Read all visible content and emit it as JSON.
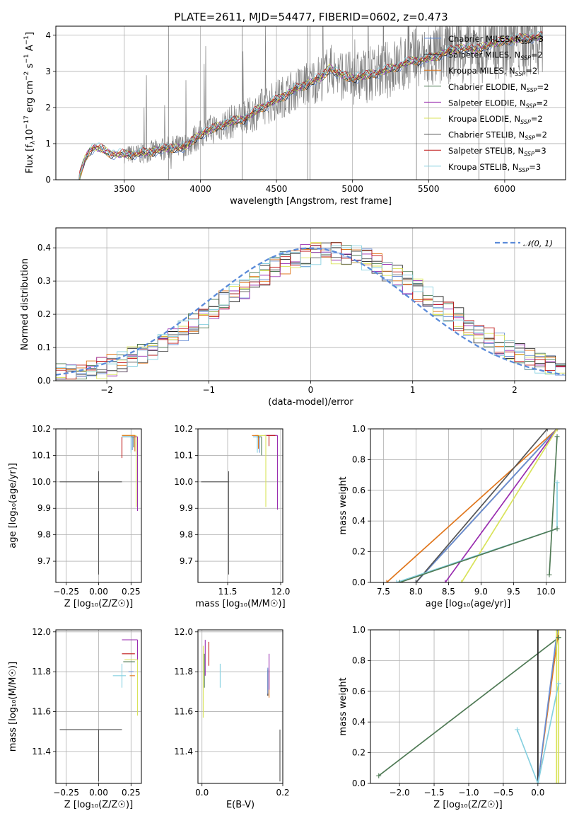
{
  "title": "PLATE=2611, MJD=54477, FIBERID=0602, z=0.473",
  "colors": {
    "chabrier_miles": "#6a8fd6",
    "salpeter_miles": "#222222",
    "kroupa_miles": "#e0761c",
    "chabrier_elodie": "#4f7a55",
    "salpeter_elodie": "#9a2eb0",
    "kroupa_elodie": "#d9e35a",
    "chabrier_stelib": "#555555",
    "salpeter_stelib": "#c01818",
    "kroupa_stelib": "#86d0e0",
    "data": "#7f7f7f",
    "normal": "#5b8bd9"
  },
  "chart_data": [
    {
      "id": "spectrum",
      "type": "line",
      "xlabel": "wavelength [Angstrom, rest frame]",
      "ylabel_parts": [
        "Flux [f",
        "λ",
        "10",
        "−17",
        " erg cm",
        "−2",
        " s",
        "−1",
        " A",
        "−1",
        "]"
      ],
      "xlim": [
        3050,
        6400
      ],
      "ylim": [
        0,
        4.25
      ],
      "xticks": [
        3500,
        4000,
        4500,
        5000,
        5500,
        6000
      ],
      "yticks": [
        0,
        1,
        2,
        3,
        4
      ],
      "continuum": {
        "x": [
          3200,
          3240,
          3270,
          3300,
          3350,
          3400,
          3450,
          3500,
          3600,
          3700,
          3800,
          3900,
          3950,
          4000,
          4100,
          4200,
          4300,
          4400,
          4500,
          4600,
          4700,
          4800,
          4850,
          4900,
          5000,
          5100,
          5200,
          5300,
          5400,
          5500,
          5600,
          5700,
          5800,
          5900,
          6000,
          6100,
          6200
        ],
        "y": [
          0,
          0.55,
          0.8,
          0.9,
          0.85,
          0.75,
          0.7,
          0.7,
          0.72,
          0.8,
          0.88,
          0.9,
          1.1,
          1.25,
          1.45,
          1.6,
          1.7,
          2.0,
          2.2,
          2.45,
          2.65,
          2.85,
          3.1,
          2.95,
          2.8,
          2.9,
          3.0,
          3.15,
          3.3,
          3.35,
          3.5,
          3.65,
          3.6,
          3.75,
          3.85,
          3.9,
          3.95
        ]
      },
      "legend": [
        {
          "name": "Chabrier MILES, N",
          "sub": "SSP",
          "n": "=3"
        },
        {
          "name": "Salpeter MILES, N",
          "sub": "SSP",
          "n": "=2"
        },
        {
          "name": "Kroupa MILES, N",
          "sub": "SSP",
          "n": "=2"
        },
        {
          "name": "Chabrier ELODIE, N",
          "sub": "SSP",
          "n": "=2"
        },
        {
          "name": "Salpeter ELODIE, N",
          "sub": "SSP",
          "n": "=2"
        },
        {
          "name": "Kroupa ELODIE, N",
          "sub": "SSP",
          "n": "=2"
        },
        {
          "name": "Chabrier STELIB, N",
          "sub": "SSP",
          "n": "=2"
        },
        {
          "name": "Salpeter STELIB, N",
          "sub": "SSP",
          "n": "=3"
        },
        {
          "name": "Kroupa STELIB, N",
          "sub": "SSP",
          "n": "=3"
        }
      ]
    },
    {
      "id": "residuals",
      "type": "bar",
      "xlabel": "(data-model)/error",
      "ylabel": "Normed distribution",
      "xlim": [
        -2.5,
        2.5
      ],
      "ylim": [
        0,
        0.46
      ],
      "xticks": [
        -2,
        -1,
        0,
        1,
        2
      ],
      "yticks": [
        0.0,
        0.1,
        0.2,
        0.3,
        0.4
      ],
      "bin_width": 0.1,
      "legend_label": "𝒩(0, 1)"
    },
    {
      "id": "age_vs_Z",
      "type": "scatter",
      "xlabel": "Z [log₁₀(Z/Z☉)]",
      "ylabel": "age  [log₁₀(age/yr)]",
      "xlim": [
        -0.33,
        0.33
      ],
      "ylim": [
        9.62,
        10.2
      ],
      "xticks": [
        -0.25,
        0.0,
        0.25
      ],
      "yticks": [
        9.7,
        9.8,
        9.9,
        10.0,
        10.1,
        10.2
      ],
      "points": [
        {
          "c": "chabrier_stelib",
          "x": 0.0,
          "xerr": [
            0.3,
            0.18
          ],
          "y": 10.0,
          "yerr": [
            0.35,
            0.04
          ]
        },
        {
          "c": "salpeter_stelib",
          "x": 0.18,
          "xerr": [
            0.0,
            0.12
          ],
          "y": 10.17,
          "yerr": [
            0.08,
            0.0
          ]
        },
        {
          "c": "salpeter_elodie",
          "x": 0.3,
          "xerr": [
            0.12,
            0.0
          ],
          "y": 10.17,
          "yerr": [
            0.28,
            0.0
          ]
        },
        {
          "c": "kroupa_elodie",
          "x": 0.29,
          "xerr": [
            0.11,
            0.0
          ],
          "y": 10.175,
          "yerr": [
            0.27,
            0.0
          ]
        },
        {
          "c": "chabrier_miles",
          "x": 0.26,
          "xerr": [
            0.08,
            0.0
          ],
          "y": 10.17,
          "yerr": [
            0.05,
            0.0
          ]
        },
        {
          "c": "kroupa_miles",
          "x": 0.28,
          "xerr": [
            0.1,
            0.0
          ],
          "y": 10.175,
          "yerr": [
            0.06,
            0.0
          ]
        },
        {
          "c": "chabrier_elodie",
          "x": 0.27,
          "xerr": [
            0.09,
            0.0
          ],
          "y": 10.17,
          "yerr": [
            0.04,
            0.0
          ]
        },
        {
          "c": "kroupa_stelib",
          "x": 0.25,
          "xerr": [
            0.07,
            0.0
          ],
          "y": 10.17,
          "yerr": [
            0.06,
            0.0
          ]
        }
      ]
    },
    {
      "id": "age_vs_mass",
      "type": "scatter",
      "xlabel": "mass [log₁₀(M/M☉)]",
      "ylabel": "",
      "xlim": [
        11.22,
        12.02
      ],
      "ylim": [
        9.62,
        10.2
      ],
      "xticks": [
        11.5,
        12.0
      ],
      "yticks": [
        9.7,
        9.8,
        9.9,
        10.0,
        10.1,
        10.2
      ],
      "points": [
        {
          "c": "chabrier_stelib",
          "x": 11.51,
          "xerr": [
            0.26,
            0.0
          ],
          "y": 10.0,
          "yerr": [
            0.35,
            0.04
          ]
        },
        {
          "c": "salpeter_elodie",
          "x": 11.97,
          "xerr": [
            0.12,
            0.0
          ],
          "y": 10.175,
          "yerr": [
            0.28,
            0.0
          ]
        },
        {
          "c": "kroupa_elodie",
          "x": 11.86,
          "xerr": [
            0.1,
            0.0
          ],
          "y": 10.175,
          "yerr": [
            0.27,
            0.0
          ]
        },
        {
          "c": "salpeter_stelib",
          "x": 11.89,
          "xerr": [
            0.02,
            0.06
          ],
          "y": 10.175,
          "yerr": [
            0.04,
            0.0
          ]
        },
        {
          "c": "chabrier_miles",
          "x": 11.8,
          "xerr": [
            0.06,
            0.0
          ],
          "y": 10.17,
          "yerr": [
            0.06,
            0.0
          ]
        },
        {
          "c": "kroupa_miles",
          "x": 11.79,
          "xerr": [
            0.06,
            0.0
          ],
          "y": 10.175,
          "yerr": [
            0.05,
            0.0
          ]
        },
        {
          "c": "chabrier_elodie",
          "x": 11.82,
          "xerr": [
            0.05,
            0.0
          ],
          "y": 10.17,
          "yerr": [
            0.07,
            0.0
          ]
        },
        {
          "c": "kroupa_stelib",
          "x": 11.78,
          "xerr": [
            0.04,
            0.0
          ],
          "y": 10.17,
          "yerr": [
            0.06,
            0.0
          ]
        }
      ]
    },
    {
      "id": "massweight_vs_age",
      "type": "line",
      "xlabel": "age  [log₁₀(age/yr)]",
      "ylabel": "mass weight",
      "xlim": [
        7.3,
        10.3
      ],
      "ylim": [
        0,
        1
      ],
      "xticks": [
        7.5,
        8.0,
        8.5,
        9.0,
        9.5,
        10.0
      ],
      "yticks": [
        0.0,
        0.2,
        0.4,
        0.6,
        0.8,
        1.0
      ],
      "series": [
        {
          "c": "kroupa_miles",
          "x": [
            7.55,
            10.17
          ],
          "y": [
            0.0,
            1.0
          ]
        },
        {
          "c": "salpeter_miles",
          "x": [
            8.0,
            10.17
          ],
          "y": [
            0.0,
            1.0
          ]
        },
        {
          "c": "chabrier_miles",
          "x": [
            8.0,
            8.0,
            10.17
          ],
          "y": [
            0.0,
            0.0,
            1.0
          ]
        },
        {
          "c": "chabrier_stelib",
          "x": [
            8.0,
            10.02
          ],
          "y": [
            0.0,
            1.0
          ]
        },
        {
          "c": "salpeter_elodie",
          "x": [
            8.45,
            10.17
          ],
          "y": [
            0.0,
            1.0
          ]
        },
        {
          "c": "kroupa_elodie",
          "x": [
            8.7,
            10.17
          ],
          "y": [
            0.0,
            1.0
          ]
        },
        {
          "c": "chabrier_elodie",
          "x": [
            10.05,
            10.17
          ],
          "y": [
            0.05,
            0.95
          ]
        },
        {
          "c": "kroupa_stelib",
          "x": [
            7.7,
            10.17,
            10.17
          ],
          "y": [
            0.0,
            0.35,
            0.65
          ]
        },
        {
          "c": "chabrier_elodie",
          "x": [
            7.75,
            10.17
          ],
          "y": [
            0.0,
            0.35
          ]
        }
      ]
    },
    {
      "id": "mass_vs_Z",
      "type": "scatter",
      "xlabel": "Z [log₁₀(Z/Z☉)]",
      "ylabel": "mass [log₁₀(M/M☉)]",
      "xlim": [
        -0.33,
        0.33
      ],
      "ylim": [
        11.24,
        12.01
      ],
      "xticks": [
        -0.25,
        0.0,
        0.25
      ],
      "yticks": [
        11.4,
        11.6,
        11.8,
        12.0
      ],
      "points": [
        {
          "c": "chabrier_stelib",
          "x": 0.0,
          "xerr": [
            0.3,
            0.18
          ],
          "y": 11.51,
          "yerr": [
            0.26,
            0.0
          ]
        },
        {
          "c": "salpeter_elodie",
          "x": 0.3,
          "xerr": [
            0.12,
            0.0
          ],
          "y": 11.96,
          "yerr": [
            0.1,
            0.0
          ]
        },
        {
          "c": "salpeter_stelib",
          "x": 0.18,
          "xerr": [
            0.0,
            0.1
          ],
          "y": 11.89,
          "yerr": [
            0.0,
            0.0
          ]
        },
        {
          "c": "chabrier_elodie",
          "x": 0.28,
          "xerr": [
            0.09,
            0.0
          ],
          "y": 11.85,
          "yerr": [
            0.0,
            0.0
          ]
        },
        {
          "c": "kroupa_elodie",
          "x": 0.3,
          "xerr": [
            0.1,
            0.0
          ],
          "y": 11.86,
          "yerr": [
            0.28,
            0.0
          ]
        },
        {
          "c": "kroupa_miles",
          "x": 0.28,
          "xerr": [
            0.04,
            0.0
          ],
          "y": 11.78,
          "yerr": [
            0.0,
            0.0
          ]
        },
        {
          "c": "chabrier_miles",
          "x": 0.27,
          "xerr": [
            0.04,
            0.0
          ],
          "y": 11.8,
          "yerr": [
            0.0,
            0.0
          ]
        },
        {
          "c": "kroupa_stelib",
          "x": 0.18,
          "xerr": [
            0.07,
            0.03
          ],
          "y": 11.78,
          "yerr": [
            0.06,
            0.06
          ]
        }
      ]
    },
    {
      "id": "mass_vs_EBV",
      "type": "scatter",
      "xlabel": "E(B-V)",
      "ylabel": "",
      "xlim": [
        -0.01,
        0.2
      ],
      "ylim": [
        11.24,
        12.01
      ],
      "xticks": [
        0.0,
        0.2
      ],
      "yticks": [
        11.4,
        11.6,
        11.8,
        12.0
      ],
      "points": [
        {
          "c": "salpeter_elodie",
          "x": 0.008,
          "yerr": [
            0.1,
            0.08
          ],
          "y": 11.88
        },
        {
          "c": "kroupa_elodie",
          "x": 0.003,
          "yerr": [
            0.28,
            0.08
          ],
          "y": 11.85
        },
        {
          "c": "chabrier_elodie",
          "x": 0.006,
          "yerr": [
            0.12,
            0.05
          ],
          "y": 11.84
        },
        {
          "c": "salpeter_stelib",
          "x": 0.017,
          "yerr": [
            0.06,
            0.06
          ],
          "y": 11.89
        },
        {
          "c": "kroupa_stelib",
          "x": 0.045,
          "yerr": [
            0.07,
            0.05
          ],
          "y": 11.79
        },
        {
          "c": "salpeter_miles",
          "x": 0.163,
          "yerr": [
            0.1,
            0.03
          ],
          "y": 11.78
        },
        {
          "c": "chabrier_miles",
          "x": 0.163,
          "yerr": [
            0.09,
            0.04
          ],
          "y": 11.78
        },
        {
          "c": "kroupa_miles",
          "x": 0.166,
          "yerr": [
            0.1,
            0.04
          ],
          "y": 11.77
        },
        {
          "c": "salpeter_elodie",
          "x": 0.166,
          "yerr": [
            0.08,
            0.1
          ],
          "y": 11.79
        },
        {
          "c": "chabrier_stelib",
          "x": 0.193,
          "yerr": [
            0.26,
            0.0
          ],
          "y": 11.51
        }
      ]
    },
    {
      "id": "massweight_vs_Z",
      "type": "line",
      "xlabel": "Z [log₁₀(Z/Z☉)]",
      "ylabel": "mass weight",
      "xlim": [
        -2.42,
        0.4
      ],
      "ylim": [
        0,
        1
      ],
      "xticks": [
        -2.0,
        -1.5,
        -1.0,
        -0.5,
        0.0
      ],
      "yticks": [
        0.0,
        0.2,
        0.4,
        0.6,
        0.8,
        1.0
      ],
      "series": [
        {
          "c": "chabrier_elodie",
          "x": [
            -2.3,
            0.3
          ],
          "y": [
            0.05,
            0.95
          ]
        },
        {
          "c": "salpeter_miles",
          "x": [
            0.0,
            0.0
          ],
          "y": [
            0.0,
            1.0
          ]
        },
        {
          "c": "kroupa_miles",
          "x": [
            0.0,
            0.3
          ],
          "y": [
            0.0,
            1.0
          ]
        },
        {
          "c": "chabrier_miles",
          "x": [
            0.0,
            0.28
          ],
          "y": [
            0.0,
            1.0
          ]
        },
        {
          "c": "kroupa_elodie",
          "x": [
            0.3,
            0.3
          ],
          "y": [
            0.0,
            1.0
          ]
        },
        {
          "c": "kroupa_elodie",
          "x": [
            0.27,
            0.27
          ],
          "y": [
            0.0,
            1.0
          ]
        },
        {
          "c": "kroupa_stelib",
          "x": [
            -0.3,
            0.0,
            0.3
          ],
          "y": [
            0.35,
            0.0,
            0.65
          ]
        },
        {
          "c": "chabrier_elodie",
          "x": [
            0.3,
            0.3
          ],
          "y": [
            0.95,
            0.95
          ]
        }
      ]
    }
  ]
}
